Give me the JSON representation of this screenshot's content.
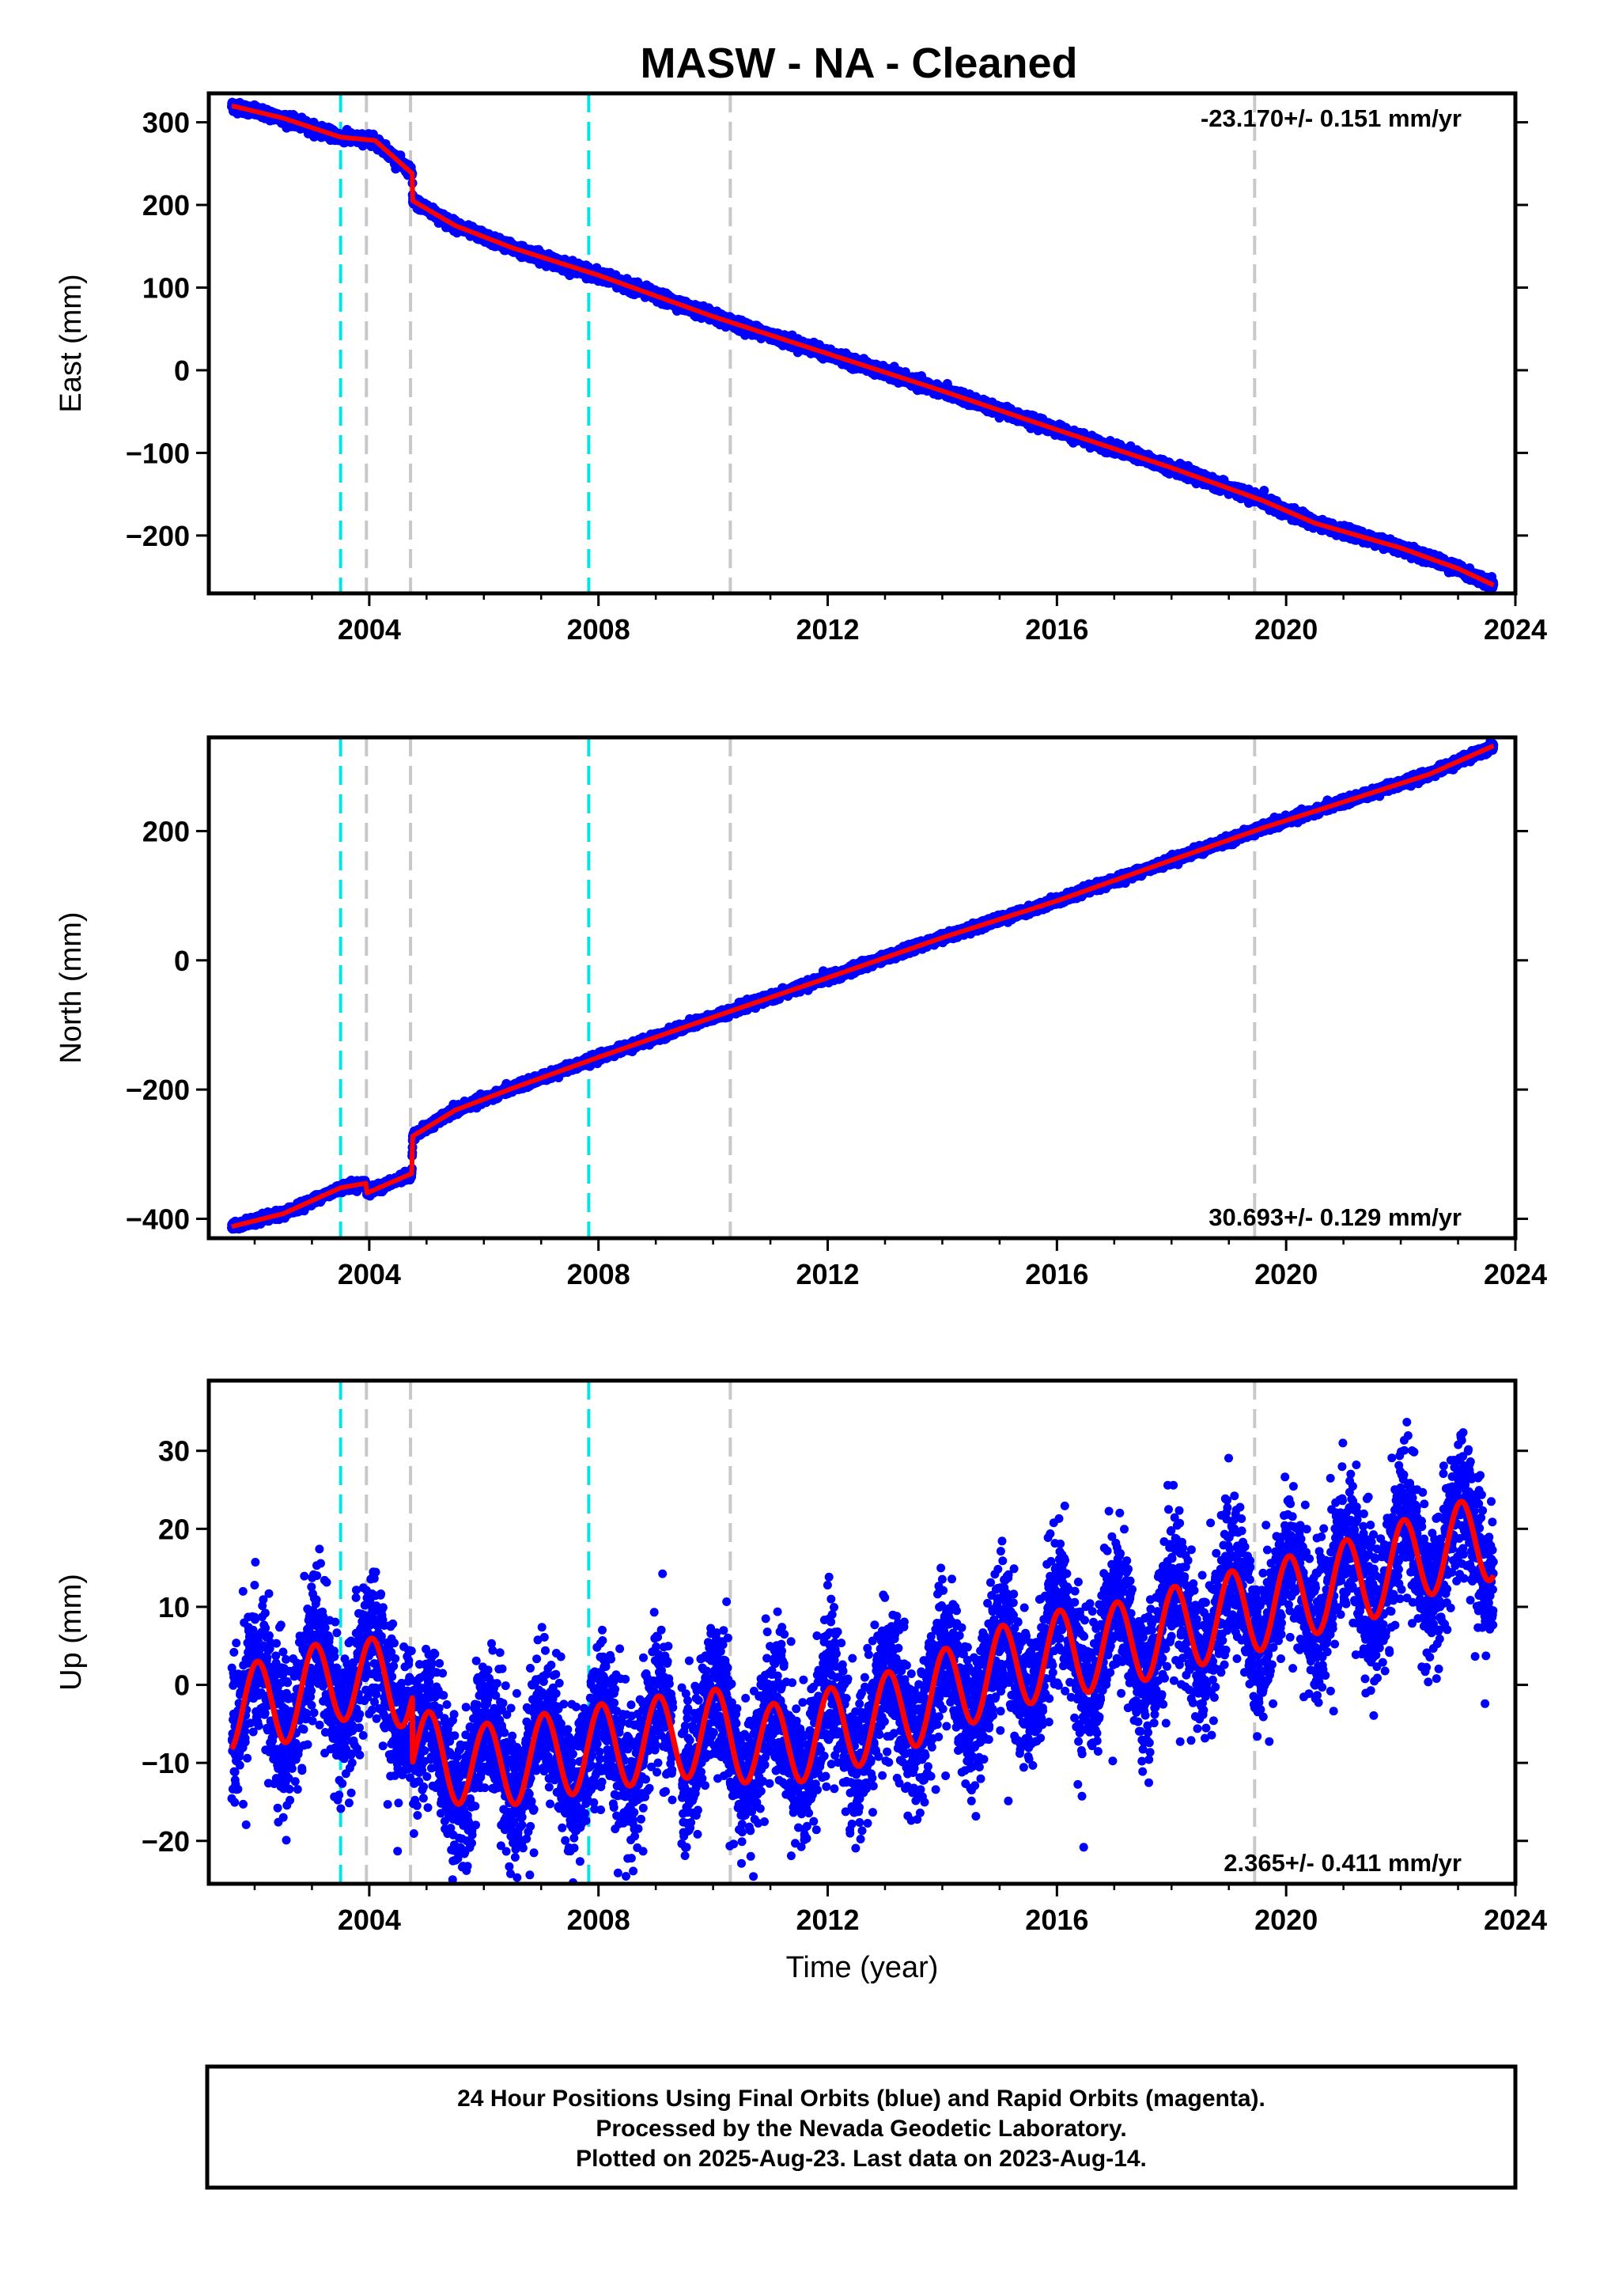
{
  "title": "MASW  - NA - Cleaned",
  "footer": {
    "lines": [
      "24 Hour Positions Using Final Orbits (blue) and Rapid Orbits (magenta).",
      "Processed by the Nevada Geodetic Laboratory.",
      "Plotted on 2025-Aug-23. Last data on 2023-Aug-14."
    ]
  },
  "colors": {
    "observations": "#0000ff",
    "model": "#ff0000",
    "equipment_change": "#00e5e5",
    "other_event": "#c8c8c8",
    "frame": "#000000"
  },
  "chart_data": [
    {
      "type": "scatter",
      "ylabel": "East (mm)",
      "xlabel": "",
      "rate_label": "-23.170+/- 0.151 mm/yr",
      "xlim": [
        2001.2,
        2024
      ],
      "ylim": [
        -270,
        335
      ],
      "x_ticks": [
        2004,
        2008,
        2012,
        2016,
        2020,
        2024
      ],
      "y_ticks": [
        300,
        200,
        100,
        0,
        -100,
        -200
      ],
      "y_tick_labels": [
        "300",
        "200",
        "100",
        "0",
        "−100",
        "−200"
      ],
      "data_start": 2001.6,
      "data_end": 2023.62,
      "offsets": [
        [
          2004.75,
          -33
        ]
      ],
      "observation_scatter_mm": 3,
      "series": [
        {
          "points": [
            [
              2001.6,
              320
            ],
            [
              2002.5,
              305
            ],
            [
              2003.5,
              282
            ],
            [
              2004.1,
              278
            ],
            [
              2004.75,
              238
            ],
            [
              2004.76,
              205
            ],
            [
              2005.5,
              175
            ],
            [
              2006.5,
              148
            ],
            [
              2008.0,
              115
            ],
            [
              2010.0,
              65
            ],
            [
              2012.0,
              20
            ],
            [
              2014.0,
              -25
            ],
            [
              2016.0,
              -72
            ],
            [
              2018.0,
              -118
            ],
            [
              2019.6,
              -158
            ],
            [
              2020.5,
              -185
            ],
            [
              2022.0,
              -215
            ],
            [
              2023.0,
              -240
            ],
            [
              2023.62,
              -260
            ]
          ]
        }
      ],
      "event_lines": [
        {
          "x": 2003.5,
          "kind": "equipment_change"
        },
        {
          "x": 2003.95,
          "kind": "other_event"
        },
        {
          "x": 2004.72,
          "kind": "other_event"
        },
        {
          "x": 2007.83,
          "kind": "equipment_change"
        },
        {
          "x": 2010.3,
          "kind": "other_event"
        },
        {
          "x": 2019.45,
          "kind": "other_event"
        }
      ]
    },
    {
      "type": "scatter",
      "ylabel": "North (mm)",
      "xlabel": "",
      "rate_label": "30.693+/- 0.129 mm/yr",
      "xlim": [
        2001.2,
        2024
      ],
      "ylim": [
        -430,
        345
      ],
      "x_ticks": [
        2004,
        2008,
        2012,
        2016,
        2020,
        2024
      ],
      "y_ticks": [
        200,
        0,
        -200,
        -400
      ],
      "y_tick_labels": [
        "200",
        "0",
        "−200",
        "−400"
      ],
      "data_start": 2001.6,
      "data_end": 2023.62,
      "offsets": [
        [
          2003.95,
          -15
        ],
        [
          2004.75,
          55
        ]
      ],
      "observation_scatter_mm": 3,
      "series": [
        {
          "points": [
            [
              2001.6,
              -412
            ],
            [
              2002.5,
              -392
            ],
            [
              2003.5,
              -352
            ],
            [
              2003.94,
              -345
            ],
            [
              2003.96,
              -360
            ],
            [
              2004.74,
              -330
            ],
            [
              2004.76,
              -272
            ],
            [
              2005.5,
              -232
            ],
            [
              2006.5,
              -198
            ],
            [
              2008.0,
              -150
            ],
            [
              2010.0,
              -88
            ],
            [
              2012.0,
              -27
            ],
            [
              2014.0,
              35
            ],
            [
              2016.0,
              92
            ],
            [
              2018.0,
              155
            ],
            [
              2019.6,
              205
            ],
            [
              2021.0,
              245
            ],
            [
              2022.5,
              288
            ],
            [
              2023.62,
              332
            ]
          ]
        }
      ],
      "event_lines": [
        {
          "x": 2003.5,
          "kind": "equipment_change"
        },
        {
          "x": 2003.95,
          "kind": "other_event"
        },
        {
          "x": 2004.72,
          "kind": "other_event"
        },
        {
          "x": 2007.83,
          "kind": "equipment_change"
        },
        {
          "x": 2010.3,
          "kind": "other_event"
        },
        {
          "x": 2019.45,
          "kind": "other_event"
        }
      ]
    },
    {
      "type": "scatter",
      "ylabel": "Up (mm)",
      "xlabel": "Time (year)",
      "rate_label": "2.365+/- 0.411 mm/yr",
      "xlim": [
        2001.2,
        2024
      ],
      "ylim": [
        -25.5,
        39
      ],
      "x_ticks": [
        2004,
        2008,
        2012,
        2016,
        2020,
        2024
      ],
      "y_ticks": [
        30,
        20,
        10,
        0,
        -10,
        -20
      ],
      "y_tick_labels": [
        "30",
        "20",
        "10",
        "0",
        "−10",
        "−20"
      ],
      "data_start": 2001.6,
      "data_end": 2023.62,
      "observation_scatter_mm": 4.5,
      "series": [
        {
          "points": [
            [
              2001.6,
              -3
            ],
            [
              2002.5,
              -2
            ],
            [
              2003.5,
              1
            ],
            [
              2004.0,
              0.5
            ],
            [
              2004.75,
              0
            ],
            [
              2004.76,
              -8.5
            ],
            [
              2006.0,
              -10.5
            ],
            [
              2008.0,
              -8
            ],
            [
              2010.0,
              -6
            ],
            [
              2010.3,
              -6.5
            ],
            [
              2011.0,
              -8
            ],
            [
              2012.0,
              -6
            ],
            [
              2013.0,
              -4
            ],
            [
              2014.0,
              -1
            ],
            [
              2015.0,
              2
            ],
            [
              2016.0,
              4
            ],
            [
              2017.0,
              5
            ],
            [
              2018.0,
              7
            ],
            [
              2019.0,
              9
            ],
            [
              2019.6,
              10
            ],
            [
              2020.5,
              12
            ],
            [
              2021.5,
              14
            ],
            [
              2022.5,
              17
            ],
            [
              2023.62,
              19
            ]
          ]
        }
      ],
      "seasonal": {
        "amplitude_mm": 5.5,
        "phase_year": 2002.8
      },
      "event_lines": [
        {
          "x": 2003.5,
          "kind": "equipment_change"
        },
        {
          "x": 2003.95,
          "kind": "other_event"
        },
        {
          "x": 2004.72,
          "kind": "other_event"
        },
        {
          "x": 2007.83,
          "kind": "equipment_change"
        },
        {
          "x": 2010.3,
          "kind": "other_event"
        },
        {
          "x": 2019.45,
          "kind": "other_event"
        }
      ]
    }
  ]
}
